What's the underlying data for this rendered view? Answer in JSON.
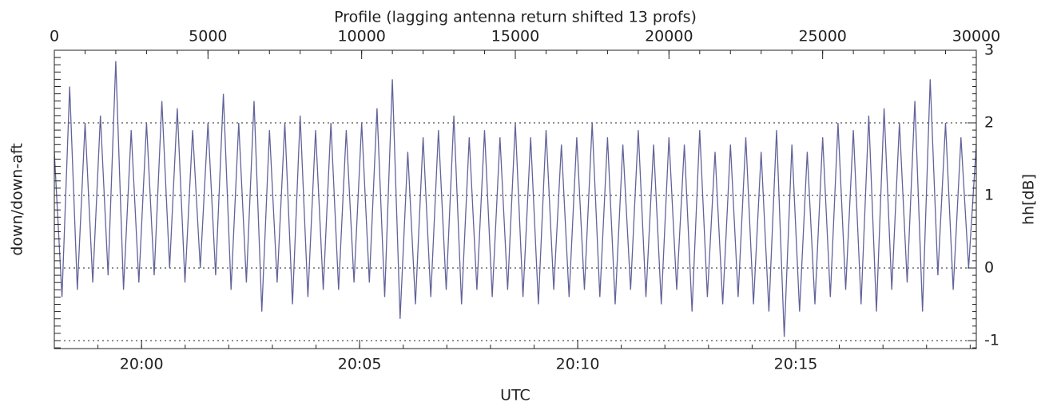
{
  "chart_data": {
    "type": "line",
    "x_label_top": "Profile (lagging antenna return shifted 13 profs)",
    "x_label": "UTC",
    "y_label": "down/down-aft",
    "y2_label": "hh[dB]",
    "xlim": [
      0,
      30000
    ],
    "xticks": [
      0,
      5000,
      10000,
      15000,
      20000,
      25000,
      30000
    ],
    "x2lim": [
      1198,
      1219.14
    ],
    "x2ticks": [
      {
        "value": 1200,
        "label": "20:00"
      },
      {
        "value": 1205,
        "label": "20:05"
      },
      {
        "value": 1210,
        "label": "20:10"
      },
      {
        "value": 1215,
        "label": "20:15"
      }
    ],
    "y2lim": [
      -1.11,
      3.0
    ],
    "y2ticks": [
      -1,
      0,
      1,
      2,
      3
    ],
    "grid": true,
    "color": "#62629a",
    "x": [
      0,
      250,
      500,
      750,
      1000,
      1250,
      1500,
      1750,
      2000,
      2250,
      2500,
      2750,
      3000,
      3250,
      3500,
      3750,
      4000,
      4250,
      4500,
      4750,
      5000,
      5250,
      5500,
      5750,
      6000,
      6250,
      6500,
      6750,
      7000,
      7250,
      7500,
      7750,
      8000,
      8250,
      8500,
      8750,
      9000,
      9250,
      9500,
      9750,
      10000,
      10250,
      10500,
      10750,
      11000,
      11250,
      11500,
      11750,
      12000,
      12250,
      12500,
      12750,
      13000,
      13250,
      13500,
      13750,
      14000,
      14250,
      14500,
      14750,
      15000,
      15250,
      15500,
      15750,
      16000,
      16250,
      16500,
      16750,
      17000,
      17250,
      17500,
      17750,
      18000,
      18250,
      18500,
      18750,
      19000,
      19250,
      19500,
      19750,
      20000,
      20250,
      20500,
      20750,
      21000,
      21250,
      21500,
      21750,
      22000,
      22250,
      22500,
      22750,
      23000,
      23250,
      23500,
      23750,
      24000,
      24250,
      24500,
      24750,
      25000,
      25250,
      25500,
      25750,
      26000,
      26250,
      26500,
      26750,
      27000,
      27250,
      27500,
      27750,
      28000,
      28250,
      28500,
      28750,
      29000,
      29250,
      29500,
      29750,
      30000
    ],
    "values": [
      1.6,
      -0.4,
      2.5,
      -0.3,
      2.0,
      -0.2,
      2.1,
      -0.1,
      2.85,
      -0.3,
      1.9,
      -0.2,
      2.0,
      -0.1,
      2.3,
      0.0,
      2.2,
      -0.2,
      1.9,
      0.0,
      2.0,
      -0.1,
      2.4,
      -0.3,
      2.0,
      -0.2,
      2.3,
      -0.6,
      1.9,
      -0.2,
      2.0,
      -0.5,
      2.1,
      -0.4,
      1.9,
      -0.3,
      2.0,
      -0.3,
      1.9,
      -0.2,
      2.0,
      -0.2,
      2.2,
      -0.4,
      2.6,
      -0.7,
      1.6,
      -0.5,
      1.8,
      -0.4,
      1.9,
      -0.3,
      2.1,
      -0.5,
      1.8,
      -0.3,
      1.9,
      -0.4,
      1.8,
      -0.3,
      2.0,
      -0.4,
      1.8,
      -0.5,
      1.9,
      -0.3,
      1.7,
      -0.4,
      1.8,
      -0.3,
      2.0,
      -0.4,
      1.8,
      -0.5,
      1.7,
      -0.3,
      1.9,
      -0.4,
      1.7,
      -0.5,
      1.8,
      -0.3,
      1.7,
      -0.6,
      1.9,
      -0.4,
      1.6,
      -0.5,
      1.7,
      -0.4,
      1.8,
      -0.5,
      1.6,
      -0.6,
      1.9,
      -0.95,
      1.7,
      -0.6,
      1.6,
      -0.5,
      1.8,
      -0.4,
      2.0,
      -0.3,
      1.9,
      -0.5,
      2.1,
      -0.6,
      2.2,
      -0.3,
      2.0,
      -0.2,
      2.3,
      -0.6,
      2.6,
      -0.1,
      2.0,
      -0.3,
      1.8,
      0.0,
      1.7
    ]
  }
}
